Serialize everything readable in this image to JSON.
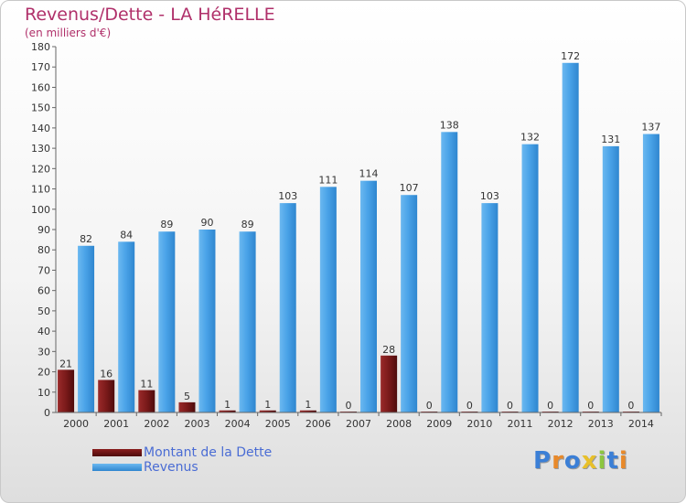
{
  "title": "Revenus/Dette - LA HéRELLE",
  "subtitle": "(en milliers d'€)",
  "colors": {
    "dette": "#7a1a1a",
    "revenus": "#4aa3e8",
    "title": "#b0306a",
    "legend_text": "#4a6cd4"
  },
  "legend": {
    "placement": "bottom-left",
    "items": [
      {
        "label": "Montant de la Dette",
        "color": "#6e0f0f"
      },
      {
        "label": "Revenus",
        "color": "#4aa3e8"
      }
    ]
  },
  "logo": {
    "text": "Proxiti"
  },
  "chart_data": {
    "type": "bar",
    "title": "Revenus/Dette - LA HéRELLE",
    "subtitle": "(en milliers d'€)",
    "categories": [
      "2000",
      "2001",
      "2002",
      "2003",
      "2004",
      "2005",
      "2006",
      "2007",
      "2008",
      "2009",
      "2010",
      "2011",
      "2012",
      "2013",
      "2014"
    ],
    "series": [
      {
        "name": "Montant de la Dette",
        "values": [
          21,
          16,
          11,
          5,
          1,
          1,
          1,
          0,
          28,
          0,
          0,
          0,
          0,
          0,
          0
        ]
      },
      {
        "name": "Revenus",
        "values": [
          82,
          84,
          89,
          90,
          89,
          103,
          111,
          114,
          107,
          138,
          103,
          132,
          172,
          131,
          137
        ]
      }
    ],
    "ylim": [
      0,
      180
    ],
    "ytick_step": 10,
    "grid": false
  }
}
